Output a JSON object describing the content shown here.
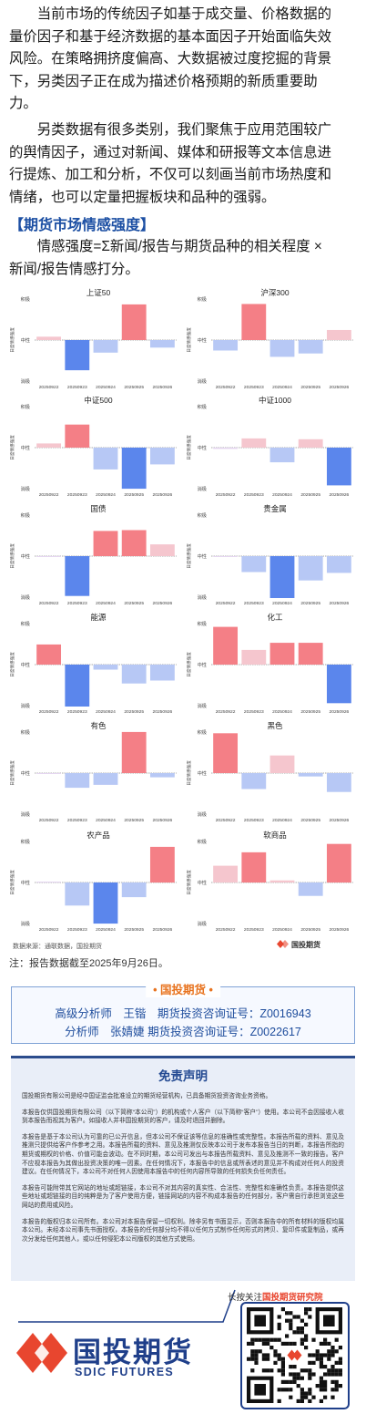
{
  "intro": {
    "p1_lines": [
      "　　当前市场的传统因子如基于成交量、价格数据的",
      "量价因子和基于经济数据的基本面因子开始面临失效",
      "风险。在策略拥挤度偏高、大数据被过度挖掘的背景",
      "下，另类因子正在成为描述价格预期的新质重要助",
      "力。"
    ],
    "p2_lines": [
      "　　另类数据有很多类别，我们聚焦于应用范围较广",
      "的舆情因子，通过对新闻、媒体和研报等文本信息进",
      "行提炼、加工和分析，不仅可以刻画当前市场热度和",
      "情绪，也可以定量把握板块和品种的强弱。"
    ],
    "section_title": "【期货市场情感强度】",
    "p3_lines": [
      "　　情感强度=Σ新闻/报告与期货品种的相关程度 ×",
      "新闻/报告情感打分。"
    ]
  },
  "chart_common": {
    "y_axis_label": "日度情感强度",
    "y_tick_top": "积极",
    "y_tick_mid": "中性",
    "y_tick_bottom": "消极",
    "dates": [
      "20250922",
      "20250923",
      "20250924",
      "20250925",
      "20250926"
    ],
    "colors": {
      "strong_pos": "#f47f86",
      "weak_pos": "#f5c6ce",
      "strong_neg": "#5b86ec",
      "weak_neg": "#b7c8f5",
      "neutral_purple": "#e3d3ef"
    }
  },
  "chart_data": [
    {
      "type": "bar",
      "title": "上证50",
      "categories": [
        "20250922",
        "20250923",
        "20250924",
        "20250925",
        "20250926"
      ],
      "values": [
        0.08,
        -0.72,
        -0.3,
        0.85,
        -0.18
      ],
      "ylim": [
        -1,
        1
      ]
    },
    {
      "type": "bar",
      "title": "沪深300",
      "categories": [
        "20250922",
        "20250923",
        "20250924",
        "20250925",
        "20250926"
      ],
      "values": [
        -0.25,
        0.86,
        -0.4,
        -0.32,
        0.24
      ],
      "ylim": [
        -1,
        1
      ]
    },
    {
      "type": "bar",
      "title": "中证500",
      "categories": [
        "20250922",
        "20250923",
        "20250924",
        "20250925",
        "20250926"
      ],
      "values": [
        0.1,
        0.55,
        -0.52,
        -0.98,
        -0.4
      ],
      "ylim": [
        -1,
        1
      ]
    },
    {
      "type": "bar",
      "title": "中证1000",
      "categories": [
        "20250922",
        "20250923",
        "20250924",
        "20250925",
        "20250926"
      ],
      "values": [
        -0.03,
        0.22,
        -0.35,
        0.2,
        -0.9
      ],
      "ylim": [
        -1,
        1
      ]
    },
    {
      "type": "bar",
      "title": "国债",
      "categories": [
        "20250922",
        "20250923",
        "20250924",
        "20250925",
        "20250926"
      ],
      "values": [
        -0.02,
        -0.95,
        0.6,
        0.62,
        0.28
      ],
      "ylim": [
        -1,
        1
      ]
    },
    {
      "type": "bar",
      "title": "贵金属",
      "categories": [
        "20250922",
        "20250923",
        "20250924",
        "20250925",
        "20250926"
      ],
      "values": [
        -0.02,
        -0.38,
        -1.0,
        -0.58,
        -0.4
      ],
      "ylim": [
        -1,
        1
      ]
    },
    {
      "type": "bar",
      "title": "能源",
      "categories": [
        "20250922",
        "20250923",
        "20250924",
        "20250925",
        "20250926"
      ],
      "values": [
        0.48,
        -1.0,
        -0.12,
        -0.45,
        -0.38
      ],
      "ylim": [
        -1,
        1
      ]
    },
    {
      "type": "bar",
      "title": "化工",
      "categories": [
        "20250922",
        "20250923",
        "20250924",
        "20250925",
        "20250926"
      ],
      "values": [
        0.9,
        0.35,
        0.52,
        0.52,
        -0.92
      ],
      "ylim": [
        -1,
        1
      ]
    },
    {
      "type": "bar",
      "title": "有色",
      "categories": [
        "20250922",
        "20250923",
        "20250924",
        "20250925",
        "20250926"
      ],
      "values": [
        -0.02,
        -0.35,
        -0.28,
        0.98,
        -0.1
      ],
      "ylim": [
        -1,
        1
      ]
    },
    {
      "type": "bar",
      "title": "黑色",
      "categories": [
        "20250922",
        "20250923",
        "20250924",
        "20250925",
        "20250926"
      ],
      "values": [
        0.95,
        -0.38,
        0.42,
        -0.08,
        -0.45
      ],
      "ylim": [
        -1,
        1
      ]
    },
    {
      "type": "bar",
      "title": "农产品",
      "categories": [
        "20250922",
        "20250923",
        "20250924",
        "20250925",
        "20250926"
      ],
      "values": [
        0.02,
        -0.55,
        -0.98,
        -0.35,
        0.85
      ],
      "ylim": [
        -1,
        1
      ]
    },
    {
      "type": "bar",
      "title": "软商品",
      "categories": [
        "20250922",
        "20250923",
        "20250924",
        "20250925",
        "20250926"
      ],
      "values": [
        0.4,
        0.72,
        0.05,
        -0.32,
        0.92
      ],
      "ylim": [
        -1,
        1
      ]
    }
  ],
  "source": {
    "text": "数据来源：通联数据，国投期货",
    "logo_text": "国投期货"
  },
  "note": "注：报告数据截至2025年9月26日。",
  "analysts": {
    "tag": "国投期货",
    "line1": "高级分析师　王锴　期货投资咨询证号：Z0016943",
    "line2": "分析师　张婧婕 期货投资咨询证号：Z0022617"
  },
  "disclaimer": {
    "title": "免责声明",
    "paragraphs": [
      "国投期货有限公司是经中国证监会批准设立的期货经营机构，已具备期货投资咨询业务资格。",
      "本报告仅供国投期货有限公司（以下简称“本公司”）的机构或个人客户（以下简称“客户”）使用。本公司不会因接收人收到本报告而视其为客户。如接收人并非国投期货的客户，请及时退回并删除。",
      "本报告是基于本公司认为可靠的已公开信息，但本公司不保证该等信息的准确性或完整性。本报告所载的资料、意见及推测只提供给客户作参考之用。本报告所载的资料、意见及推测仅反映本公司于发布本报告当日的判断，本报告所指的期货或期权的价格、价值可能会波动。在不同时期，本公司可发出与本报告所载资料、意见及推测不一致的报告。客户不应视本报告为其做出投资决策的唯一因素。在任何情况下，本报告中的信息或所表述的意见并不构成对任何人的投资建议。在任何情况下，本公司不对任何人因使用本报告中的任何内容所导致的任何损失负任何责任。",
      "本报告可能附带其它网站的地址或超链接，本公司不对其内容的真实性、合法性、完整性和准确性负责。本报告提供这些地址或超链接的目的纯粹是为了客户使用方便，链接网站的内容不构成本报告的任何部分，客户需自行承担浏览这些网站的费用或风险。",
      "本报告的版权归本公司所有。本公司对本报告保留一切权利。除非另有书面显示，否则本报告中的所有材料的版权均属本公司。未经本公司事先书面授权，本报告的任何部分均不得以任何方式制作任何形式的拷贝、复印件或复制品，或再次分发给任何其他人，或以任何侵犯本公司版权的其他方式使用。"
    ]
  },
  "footer": {
    "follow_prefix": "长按关注",
    "follow_brand": "国投期货研究院",
    "logo_cn": "国投期货",
    "logo_en": "SDIC FUTURES"
  }
}
